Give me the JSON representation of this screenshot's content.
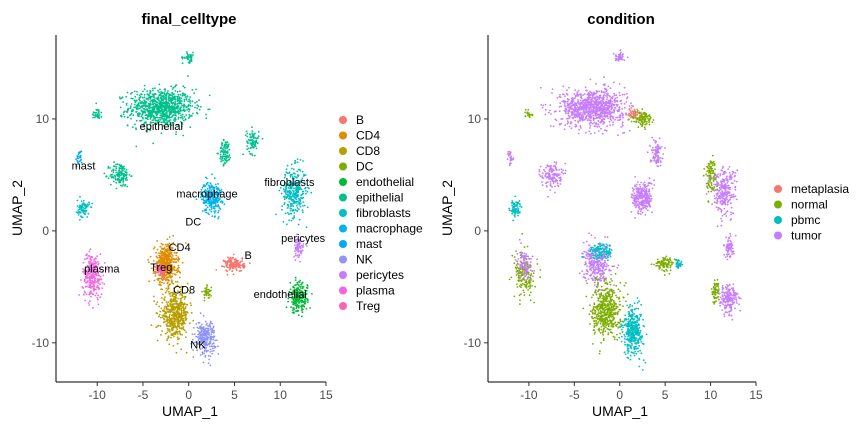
{
  "chart_data": [
    {
      "type": "scatter",
      "title": "final_celltype",
      "xlabel": "UMAP_1",
      "ylabel": "UMAP_2",
      "xlim": [
        -14.5,
        15
      ],
      "ylim": [
        -13.5,
        17.5
      ],
      "xticks": [
        -10,
        -5,
        0,
        5,
        10,
        15
      ],
      "yticks": [
        -10,
        0,
        10
      ],
      "grid": false,
      "legend_position": "right",
      "legend": [
        {
          "name": "B",
          "color": "#F8766D"
        },
        {
          "name": "CD4",
          "color": "#DE8C00"
        },
        {
          "name": "CD8",
          "color": "#B79F00"
        },
        {
          "name": "DC",
          "color": "#7CAE00"
        },
        {
          "name": "endothelial",
          "color": "#00BA38"
        },
        {
          "name": "epithelial",
          "color": "#00C08B"
        },
        {
          "name": "fibroblasts",
          "color": "#00BFC4"
        },
        {
          "name": "macrophage",
          "color": "#00B4F0"
        },
        {
          "name": "mast",
          "color": "#00A9FF"
        },
        {
          "name": "NK",
          "color": "#8E95F7"
        },
        {
          "name": "pericytes",
          "color": "#C77CFF"
        },
        {
          "name": "plasma",
          "color": "#F564E3"
        },
        {
          "name": "Treg",
          "color": "#FF64B0"
        }
      ],
      "clusters": [
        {
          "name": "epithelial",
          "color": "#00C08B",
          "cx": -3,
          "cy": 11,
          "sx": 3.2,
          "sy": 1.5,
          "n": 900
        },
        {
          "name": "epithelial",
          "color": "#00C08B",
          "cx": -7.5,
          "cy": 5,
          "sx": 1.0,
          "sy": 1.0,
          "n": 140
        },
        {
          "name": "epithelial",
          "color": "#00C08B",
          "cx": 4,
          "cy": 7,
          "sx": 0.6,
          "sy": 1.0,
          "n": 90
        },
        {
          "name": "epithelial",
          "color": "#00C08B",
          "cx": -10,
          "cy": 10.5,
          "sx": 0.5,
          "sy": 0.5,
          "n": 30
        },
        {
          "name": "epithelial",
          "color": "#00C08B",
          "cx": 0,
          "cy": 15.5,
          "sx": 0.6,
          "sy": 0.4,
          "n": 40
        },
        {
          "name": "epithelial",
          "color": "#00C08B",
          "cx": 7,
          "cy": 8,
          "sx": 0.6,
          "sy": 1.0,
          "n": 80
        },
        {
          "name": "fibroblasts",
          "color": "#00BFC4",
          "cx": 11.5,
          "cy": 3.5,
          "sx": 1.2,
          "sy": 2.0,
          "n": 320
        },
        {
          "name": "mast",
          "color": "#00A9FF",
          "cx": -12,
          "cy": 6.5,
          "sx": 0.3,
          "sy": 0.6,
          "n": 25
        },
        {
          "name": "macrophage",
          "color": "#00B4F0",
          "cx": 2.5,
          "cy": 3,
          "sx": 1.0,
          "sy": 1.3,
          "n": 260
        },
        {
          "name": "fibroblasts",
          "color": "#00BFC4",
          "cx": -11.5,
          "cy": 2,
          "sx": 0.6,
          "sy": 0.7,
          "n": 80
        },
        {
          "name": "plasma",
          "color": "#F564E3",
          "cx": -10.5,
          "cy": -4,
          "sx": 1.0,
          "sy": 1.8,
          "n": 260
        },
        {
          "name": "CD4",
          "color": "#DE8C00",
          "cx": -2.5,
          "cy": -3,
          "sx": 1.1,
          "sy": 1.6,
          "n": 500
        },
        {
          "name": "CD8",
          "color": "#B79F00",
          "cx": -1.5,
          "cy": -7.5,
          "sx": 1.4,
          "sy": 1.8,
          "n": 500
        },
        {
          "name": "NK",
          "color": "#8E95F7",
          "cx": 1.8,
          "cy": -9.5,
          "sx": 1.0,
          "sy": 1.3,
          "n": 260
        },
        {
          "name": "Treg",
          "color": "#FF64B0",
          "cx": -3,
          "cy": -3.5,
          "sx": 0.5,
          "sy": 0.5,
          "n": 50
        },
        {
          "name": "DC",
          "color": "#7CAE00",
          "cx": 2,
          "cy": -5.5,
          "sx": 0.4,
          "sy": 0.5,
          "n": 40
        },
        {
          "name": "B",
          "color": "#F8766D",
          "cx": 5,
          "cy": -3,
          "sx": 1.0,
          "sy": 0.6,
          "n": 150
        },
        {
          "name": "endothelial",
          "color": "#00BA38",
          "cx": 12,
          "cy": -6,
          "sx": 0.9,
          "sy": 1.2,
          "n": 220
        },
        {
          "name": "pericytes",
          "color": "#C77CFF",
          "cx": 12,
          "cy": -1.5,
          "sx": 0.5,
          "sy": 0.8,
          "n": 70
        }
      ],
      "cluster_labels": [
        {
          "text": "epithelial",
          "x": -3,
          "y": 9
        },
        {
          "text": "mast",
          "x": -11.5,
          "y": 5.5
        },
        {
          "text": "macrophage",
          "x": 2,
          "y": 3
        },
        {
          "text": "DC",
          "x": 0.5,
          "y": 0.5
        },
        {
          "text": "fibroblasts",
          "x": 11,
          "y": 4
        },
        {
          "text": "pericytes",
          "x": 12.5,
          "y": -1
        },
        {
          "text": "CD4",
          "x": -1,
          "y": -1.8
        },
        {
          "text": "Treg",
          "x": -3,
          "y": -3.6
        },
        {
          "text": "plasma",
          "x": -9.5,
          "y": -3.7
        },
        {
          "text": "B",
          "x": 6.5,
          "y": -2.5
        },
        {
          "text": "CD8",
          "x": -0.5,
          "y": -5.6
        },
        {
          "text": "endothelial",
          "x": 10,
          "y": -6
        },
        {
          "text": "NK",
          "x": 1,
          "y": -10.5
        }
      ]
    },
    {
      "type": "scatter",
      "title": "condition",
      "xlabel": "UMAP_1",
      "ylabel": "UMAP_2",
      "xlim": [
        -14.5,
        15
      ],
      "ylim": [
        -13.5,
        17.5
      ],
      "xticks": [
        -10,
        -5,
        0,
        5,
        10,
        15
      ],
      "yticks": [
        -10,
        0,
        10
      ],
      "grid": false,
      "legend_position": "right",
      "legend": [
        {
          "name": "metaplasia",
          "color": "#F8766D"
        },
        {
          "name": "normal",
          "color": "#7CAE00"
        },
        {
          "name": "pbmc",
          "color": "#00BFC4"
        },
        {
          "name": "tumor",
          "color": "#C77CFF"
        }
      ],
      "clusters": [
        {
          "name": "tumor",
          "color": "#C77CFF",
          "cx": -3,
          "cy": 11,
          "sx": 3.2,
          "sy": 1.5,
          "n": 900
        },
        {
          "name": "normal",
          "color": "#7CAE00",
          "cx": 2.5,
          "cy": 10,
          "sx": 1.0,
          "sy": 0.7,
          "n": 120
        },
        {
          "name": "metaplasia",
          "color": "#F8766D",
          "cx": 1.5,
          "cy": 10.5,
          "sx": 0.6,
          "sy": 0.5,
          "n": 40
        },
        {
          "name": "tumor",
          "color": "#C77CFF",
          "cx": -7.5,
          "cy": 5,
          "sx": 1.0,
          "sy": 1.0,
          "n": 140
        },
        {
          "name": "tumor",
          "color": "#C77CFF",
          "cx": 4,
          "cy": 7,
          "sx": 0.6,
          "sy": 1.0,
          "n": 90
        },
        {
          "name": "normal",
          "color": "#7CAE00",
          "cx": -10,
          "cy": 10.5,
          "sx": 0.4,
          "sy": 0.4,
          "n": 20
        },
        {
          "name": "tumor",
          "color": "#C77CFF",
          "cx": 0,
          "cy": 15.5,
          "sx": 0.6,
          "sy": 0.4,
          "n": 40
        },
        {
          "name": "normal",
          "color": "#7CAE00",
          "cx": 10,
          "cy": 5,
          "sx": 0.6,
          "sy": 1.4,
          "n": 100
        },
        {
          "name": "tumor",
          "color": "#C77CFF",
          "cx": 11.5,
          "cy": 3.5,
          "sx": 1.2,
          "sy": 2.0,
          "n": 260
        },
        {
          "name": "tumor",
          "color": "#C77CFF",
          "cx": -12,
          "cy": 6.5,
          "sx": 0.3,
          "sy": 0.6,
          "n": 25
        },
        {
          "name": "tumor",
          "color": "#C77CFF",
          "cx": 2.5,
          "cy": 3,
          "sx": 1.0,
          "sy": 1.3,
          "n": 260
        },
        {
          "name": "pbmc",
          "color": "#00BFC4",
          "cx": -11.5,
          "cy": 2,
          "sx": 0.6,
          "sy": 0.7,
          "n": 80
        },
        {
          "name": "normal",
          "color": "#7CAE00",
          "cx": -10.5,
          "cy": -4,
          "sx": 1.0,
          "sy": 1.8,
          "n": 160
        },
        {
          "name": "tumor",
          "color": "#C77CFF",
          "cx": -10.5,
          "cy": -3,
          "sx": 0.8,
          "sy": 1.2,
          "n": 90
        },
        {
          "name": "tumor",
          "color": "#C77CFF",
          "cx": -2.5,
          "cy": -3,
          "sx": 1.3,
          "sy": 1.6,
          "n": 300
        },
        {
          "name": "normal",
          "color": "#7CAE00",
          "cx": -1.5,
          "cy": -7,
          "sx": 1.4,
          "sy": 2.2,
          "n": 500
        },
        {
          "name": "pbmc",
          "color": "#00BFC4",
          "cx": 1.5,
          "cy": -9,
          "sx": 1.0,
          "sy": 2.0,
          "n": 350
        },
        {
          "name": "pbmc",
          "color": "#00BFC4",
          "cx": -2,
          "cy": -1.8,
          "sx": 1.2,
          "sy": 0.6,
          "n": 120
        },
        {
          "name": "normal",
          "color": "#7CAE00",
          "cx": 5,
          "cy": -3,
          "sx": 1.0,
          "sy": 0.6,
          "n": 100
        },
        {
          "name": "pbmc",
          "color": "#00BFC4",
          "cx": 6.5,
          "cy": -3,
          "sx": 0.4,
          "sy": 0.4,
          "n": 30
        },
        {
          "name": "tumor",
          "color": "#C77CFF",
          "cx": 12,
          "cy": -6,
          "sx": 0.9,
          "sy": 1.2,
          "n": 180
        },
        {
          "name": "normal",
          "color": "#7CAE00",
          "cx": 10.5,
          "cy": -5.5,
          "sx": 0.4,
          "sy": 1.0,
          "n": 60
        },
        {
          "name": "tumor",
          "color": "#C77CFF",
          "cx": 12,
          "cy": -1.5,
          "sx": 0.5,
          "sy": 0.8,
          "n": 70
        }
      ]
    }
  ]
}
